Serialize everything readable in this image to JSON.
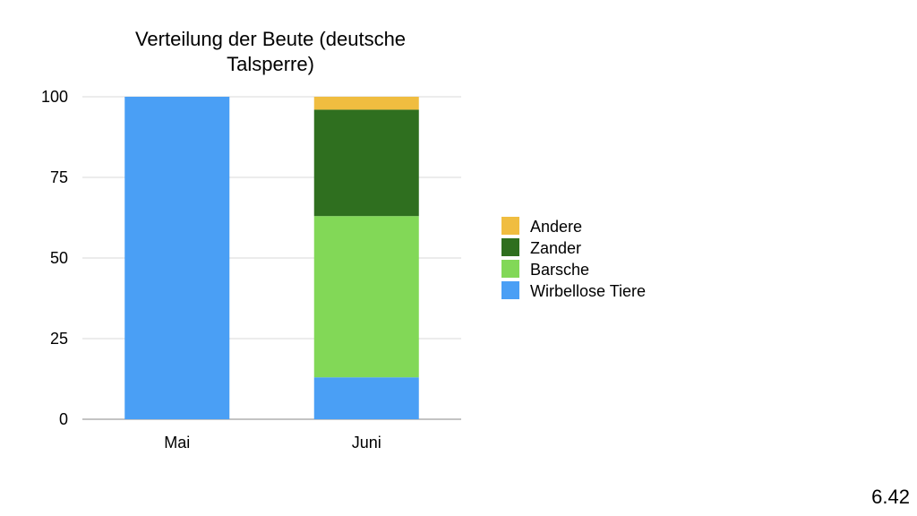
{
  "chart_data": {
    "type": "bar",
    "stacked": true,
    "title": "Verteilung der Beute (deutsche Talsperre)",
    "title_lines": [
      "Verteilung der Beute (deutsche",
      "Talsperre)"
    ],
    "categories": [
      "Mai",
      "Juni"
    ],
    "series": [
      {
        "name": "Wirbellose Tiere",
        "color": "#4a9ff5",
        "values": [
          100,
          13
        ]
      },
      {
        "name": "Barsche",
        "color": "#82d857",
        "values": [
          0,
          50
        ]
      },
      {
        "name": "Zander",
        "color": "#2f6f1f",
        "values": [
          0,
          33
        ]
      },
      {
        "name": "Andere",
        "color": "#f0bd40",
        "values": [
          0,
          4
        ]
      }
    ],
    "legend_order": [
      "Andere",
      "Zander",
      "Barsche",
      "Wirbellose Tiere"
    ],
    "yticks": [
      0,
      25,
      50,
      75,
      100
    ],
    "ylim": [
      0,
      100
    ],
    "grid": true,
    "legend_position": "right"
  },
  "slide_number": "6.42"
}
